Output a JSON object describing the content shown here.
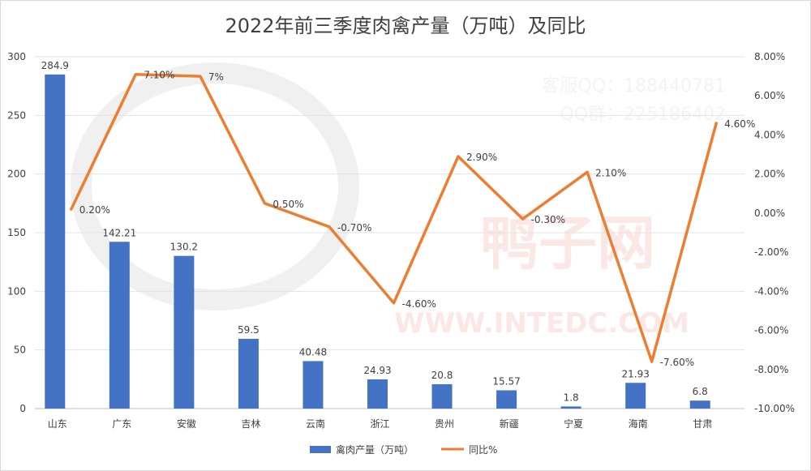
{
  "chart_data": {
    "type": "bar+line",
    "title": "2022年前三季度肉禽产量（万吨）及同比",
    "categories": [
      "山东",
      "广东",
      "安徽",
      "吉林",
      "云南",
      "浙江",
      "贵州",
      "新疆",
      "宁夏",
      "海南",
      "甘肃"
    ],
    "series": [
      {
        "name": "禽肉产量（万吨）",
        "type": "bar",
        "axis": "left",
        "color": "#4472c4",
        "values": [
          284.9,
          142.21,
          130.2,
          59.5,
          40.48,
          24.93,
          20.8,
          15.57,
          1.8,
          21.93,
          6.8
        ],
        "labels": [
          "284.9",
          "142.21",
          "130.2",
          "59.5",
          "40.48",
          "24.93",
          "20.8",
          "15.57",
          "1.8",
          "21.93",
          "6.8"
        ]
      },
      {
        "name": "同比%",
        "type": "line",
        "axis": "right",
        "color": "#ed7d31",
        "values": [
          0.2,
          7.1,
          7.0,
          0.5,
          -0.7,
          -4.6,
          2.9,
          -0.3,
          2.1,
          -7.6,
          4.6
        ],
        "labels": [
          "0.20%",
          "7.10%",
          "7%",
          "0.50%",
          "-0.70%",
          "-4.60%",
          "2.90%",
          "-0.30%",
          "2.10%",
          "-7.60%",
          "4.60%"
        ]
      }
    ],
    "y_left": {
      "range": [
        0,
        300
      ],
      "ticks": [
        "0",
        "50",
        "100",
        "150",
        "200",
        "250",
        "300"
      ]
    },
    "y_right": {
      "range": [
        -10,
        8
      ],
      "ticks": [
        "-10.00%",
        "-8.00%",
        "-6.00%",
        "-4.00%",
        "-2.00%",
        "0.00%",
        "2.00%",
        "4.00%",
        "6.00%",
        "8.00%"
      ]
    },
    "grid": true,
    "legend": "bottom"
  },
  "watermark": {
    "lines": [
      "客服QQ：188440781",
      "QQ群：225186402"
    ],
    "site": "WWW.INTEDC.COM",
    "brand": "鸭子网"
  }
}
